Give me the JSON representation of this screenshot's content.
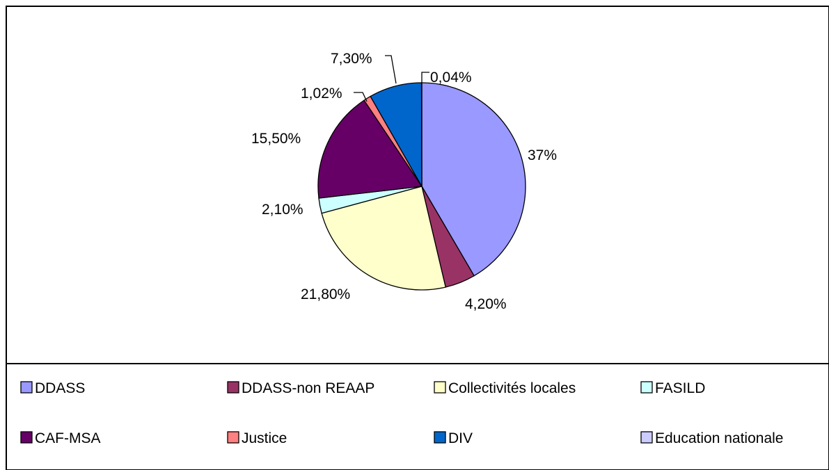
{
  "chart_data": {
    "type": "pie",
    "title": "",
    "start_angle_deg": 0,
    "direction": "clockwise",
    "slices": [
      {
        "label": "DDASS",
        "value": 37,
        "display": "37%",
        "color": "#9999ff"
      },
      {
        "label": "DDASS-non REAAP",
        "value": 4.2,
        "display": "4,20%",
        "color": "#993366"
      },
      {
        "label": "Collectivités locales",
        "value": 21.8,
        "display": "21,80%",
        "color": "#ffffcc"
      },
      {
        "label": "FASILD",
        "value": 2.1,
        "display": "2,10%",
        "color": "#ccffff"
      },
      {
        "label": "CAF-MSA",
        "value": 15.5,
        "display": "15,50%",
        "color": "#660066"
      },
      {
        "label": "Justice",
        "value": 1.02,
        "display": "1,02%",
        "color": "#ff8080"
      },
      {
        "label": "DIV",
        "value": 7.3,
        "display": "7,30%",
        "color": "#0066cc"
      },
      {
        "label": "Education nationale",
        "value": 0.04,
        "display": "0,04%",
        "color": "#ccccff"
      }
    ],
    "legend": {
      "placement": "bottom",
      "columns": 4
    }
  }
}
